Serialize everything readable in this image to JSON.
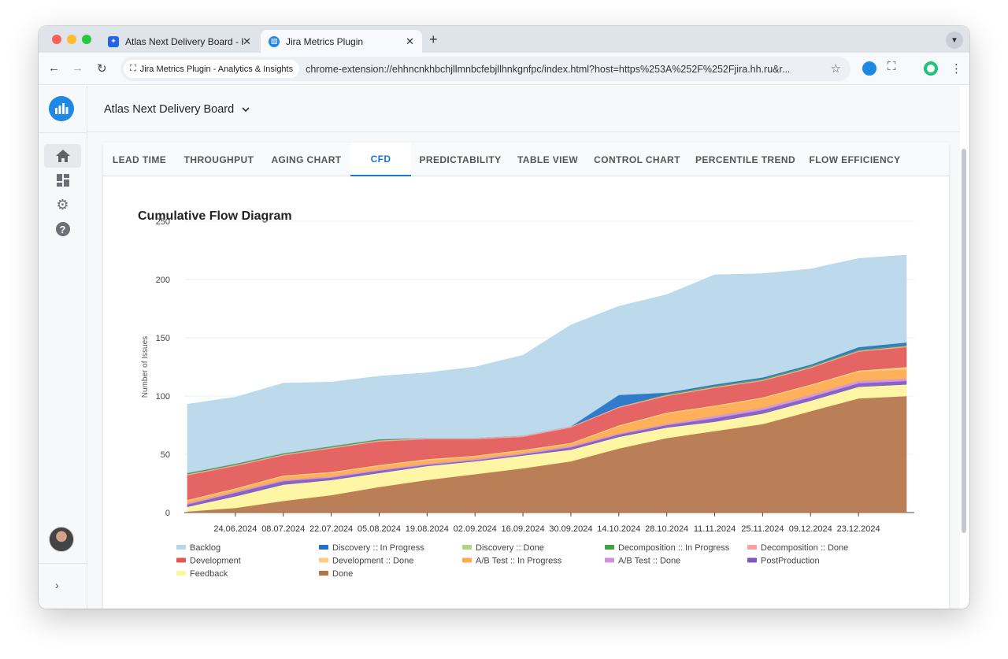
{
  "browser": {
    "tabs": [
      {
        "title": "Atlas Next Delivery Board - K",
        "active": false,
        "favicon_color": "#2563eb"
      },
      {
        "title": "Jira Metrics Plugin",
        "active": true,
        "favicon_color": "#1e88e5"
      }
    ],
    "site_chip": "Jira Metrics Plugin - Analytics & Insights",
    "url": "chrome-extension://ehhncnkhbchjllmnbcfebjllhnkgnfpc/index.html?host=https%253A%252F%252Fjira.hh.ru&r..."
  },
  "app": {
    "board_name": "Atlas Next Delivery Board",
    "tabs": [
      "LEAD TIME",
      "THROUGHPUT",
      "AGING CHART",
      "CFD",
      "PREDICTABILITY",
      "TABLE VIEW",
      "CONTROL CHART",
      "PERCENTILE TREND",
      "FLOW EFFICIENCY"
    ],
    "active_tab": "CFD"
  },
  "chart_data": {
    "type": "area",
    "title": "Cumulative Flow Diagram",
    "xlabel": "",
    "ylabel": "Number of Issues",
    "ylim": [
      0,
      250
    ],
    "yticks": [
      0,
      50,
      100,
      150,
      200,
      250
    ],
    "x": [
      "10.06.2024",
      "24.06.2024",
      "08.07.2024",
      "22.07.2024",
      "05.08.2024",
      "19.08.2024",
      "02.09.2024",
      "16.09.2024",
      "30.09.2024",
      "14.10.2024",
      "28.10.2024",
      "11.11.2024",
      "25.11.2024",
      "09.12.2024",
      "23.12.2024",
      "30.12.2024"
    ],
    "xtick_labels": [
      "24.06.2024",
      "08.07.2024",
      "22.07.2024",
      "05.08.2024",
      "19.08.2024",
      "02.09.2024",
      "16.09.2024",
      "30.09.2024",
      "14.10.2024",
      "28.10.2024",
      "11.11.2024",
      "25.11.2024",
      "09.12.2024",
      "23.12.2024"
    ],
    "series": [
      {
        "name": "Done",
        "color": "#b47449",
        "values": [
          1,
          4,
          10,
          15,
          22,
          28,
          33,
          38,
          44,
          55,
          64,
          70,
          76,
          87,
          98,
          100
        ]
      },
      {
        "name": "Feedback",
        "color": "#fff59d",
        "values": [
          4,
          10,
          14,
          13,
          12,
          12,
          11,
          11,
          10,
          10,
          9,
          8,
          9,
          9,
          10,
          10
        ]
      },
      {
        "name": "PostProduction",
        "color": "#7e57c2",
        "values": [
          2,
          3,
          3,
          2,
          2,
          1,
          1,
          1,
          2,
          2,
          2,
          3,
          3,
          3,
          3,
          3
        ]
      },
      {
        "name": "A/B Test :: Done",
        "color": "#ce93d8",
        "values": [
          1,
          1,
          1,
          1,
          1,
          1,
          1,
          1,
          1,
          1,
          1,
          2,
          2,
          2,
          2,
          2
        ]
      },
      {
        "name": "A/B Test :: In Progress",
        "color": "#ffa94d",
        "values": [
          2,
          2,
          3,
          3,
          3,
          3,
          2,
          2,
          2,
          6,
          9,
          8,
          8,
          8,
          8,
          8
        ]
      },
      {
        "name": "Development :: Done",
        "color": "#ffcc80",
        "values": [
          1,
          1,
          1,
          1,
          1,
          1,
          1,
          1,
          1,
          1,
          1,
          1,
          1,
          1,
          1,
          2
        ]
      },
      {
        "name": "Development",
        "color": "#e35757",
        "values": [
          21,
          19,
          17,
          20,
          20,
          17,
          14,
          11,
          13,
          15,
          14,
          15,
          14,
          14,
          16,
          17
        ]
      },
      {
        "name": "Decomposition :: Done",
        "color": "#f7a1a1",
        "values": [
          1,
          1,
          1,
          1,
          1,
          1,
          1,
          1,
          1,
          1,
          1,
          1,
          1,
          1,
          1,
          1
        ]
      },
      {
        "name": "Decomposition :: In Progress",
        "color": "#43a047",
        "values": [
          1,
          1,
          1,
          1,
          1,
          0,
          0,
          0,
          0,
          0,
          1,
          1,
          1,
          1,
          1,
          1
        ]
      },
      {
        "name": "Discovery :: Done",
        "color": "#aed581",
        "values": [
          0,
          0,
          0,
          0,
          0,
          0,
          0,
          0,
          0,
          0,
          0,
          0,
          0,
          0,
          0,
          0
        ]
      },
      {
        "name": "Discovery :: In Progress",
        "color": "#1e70c8",
        "values": [
          0,
          0,
          0,
          0,
          0,
          0,
          0,
          0,
          0,
          10,
          1,
          1,
          1,
          1,
          2,
          2
        ]
      },
      {
        "name": "Backlog",
        "color": "#b6d7ea",
        "values": [
          59,
          57,
          60,
          55,
          54,
          56,
          61,
          69,
          87,
          76,
          84,
          94,
          89,
          82,
          76,
          75
        ]
      }
    ],
    "legend": [
      "Backlog",
      "Discovery :: In Progress",
      "Discovery :: Done",
      "Decomposition :: In Progress",
      "Decomposition :: Done",
      "Development",
      "Development :: Done",
      "A/B Test :: In Progress",
      "A/B Test :: Done",
      "PostProduction",
      "Feedback",
      "Done"
    ],
    "legend_position": "bottom"
  }
}
